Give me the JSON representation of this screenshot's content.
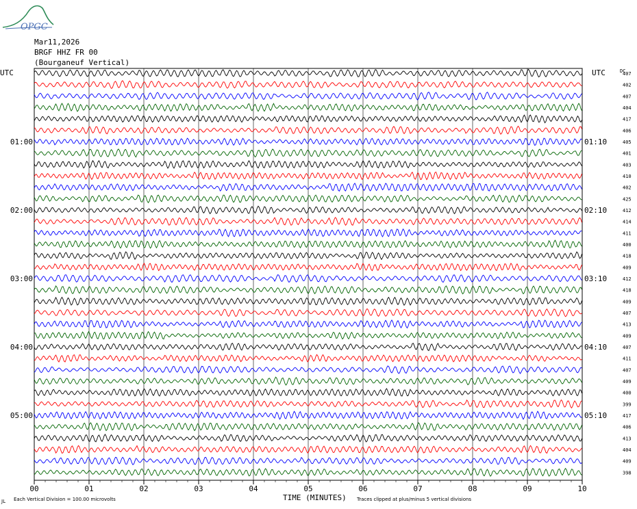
{
  "logo_text": "OPGC",
  "header": {
    "date": "Mar11,2026",
    "station": "BRGF HHZ FR 00",
    "location": "(Bourganeuf Vertical)"
  },
  "left_axis_label": "UTC",
  "right_axis_label": "UTC",
  "dc_label": "DC",
  "footer": {
    "scale_note": "Each Vertical Division =  100.00 microvolts",
    "xlabel": "TIME (MINUTES)",
    "clip_note": "Traces clipped at plus/minus 5 vertical divisions",
    "corner_mark": "JL"
  },
  "colors": {
    "trace_cycle": [
      "#000000",
      "#ff0000",
      "#0000ff",
      "#006400"
    ],
    "grid": "#000000"
  },
  "chart_data": {
    "type": "line",
    "subtype": "helicorder",
    "title": "",
    "xlabel": "TIME (MINUTES)",
    "ylabel": "",
    "xlim": [
      0,
      10
    ],
    "x_ticks": [
      "00",
      "01",
      "02",
      "03",
      "04",
      "05",
      "06",
      "07",
      "08",
      "09",
      "10"
    ],
    "minutes_per_line": 10,
    "trace_count": 36,
    "left_time_labels": [
      {
        "line": 6,
        "label": "01:00"
      },
      {
        "line": 12,
        "label": "02:00"
      },
      {
        "line": 18,
        "label": "03:00"
      },
      {
        "line": 24,
        "label": "04:00"
      },
      {
        "line": 30,
        "label": "05:00"
      }
    ],
    "right_time_labels": [
      {
        "line": 6,
        "label": "01:10"
      },
      {
        "line": 12,
        "label": "02:10"
      },
      {
        "line": 18,
        "label": "03:10"
      },
      {
        "line": 24,
        "label": "04:10"
      },
      {
        "line": 30,
        "label": "05:10"
      }
    ],
    "dc_values": [
      "407",
      "402",
      "407",
      "404",
      "417",
      "406",
      "405",
      "401",
      "403",
      "410",
      "402",
      "425",
      "412",
      "414",
      "411",
      "400",
      "418",
      "409",
      "412",
      "418",
      "409",
      "407",
      "413",
      "409",
      "407",
      "411",
      "407",
      "409",
      "400",
      "399",
      "417",
      "406",
      "413",
      "404",
      "409",
      "398"
    ],
    "grid": true
  }
}
